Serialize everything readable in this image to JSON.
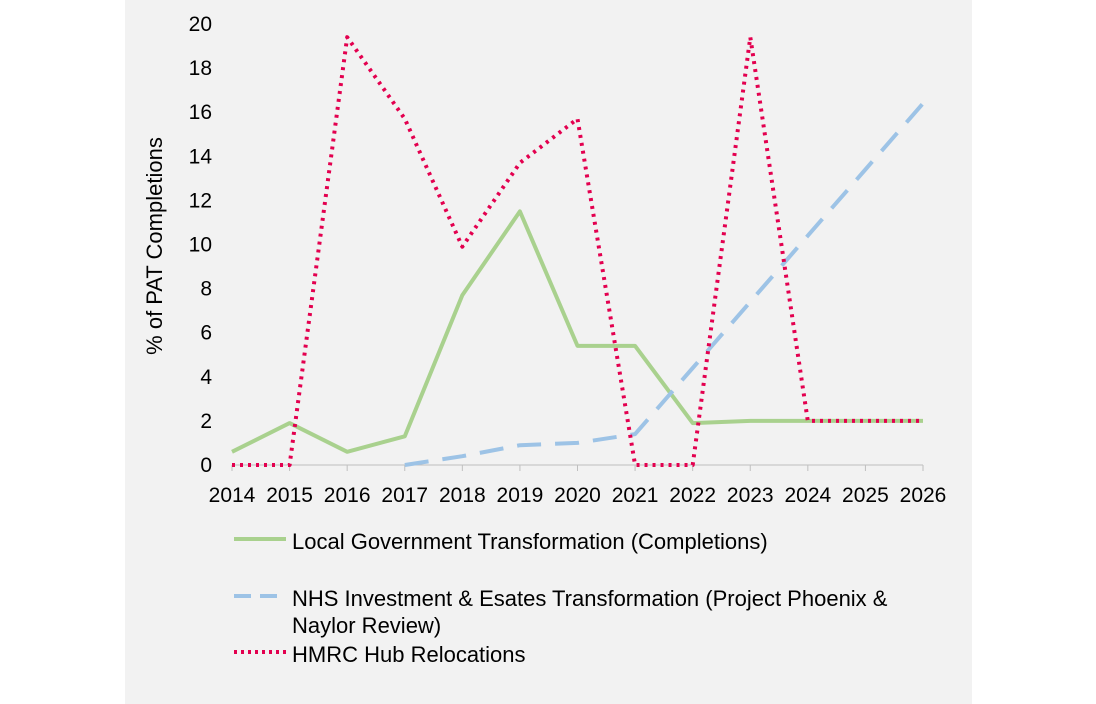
{
  "chart_data": {
    "type": "line",
    "title": "",
    "xlabel": "",
    "ylabel": "% of PAT Completions",
    "x": [
      "2014",
      "2015",
      "2016",
      "2017",
      "2018",
      "2019",
      "2020",
      "2021",
      "2022",
      "2023",
      "2024",
      "2025",
      "2026"
    ],
    "ylim": [
      0,
      20
    ],
    "yticks": [
      "0",
      "2",
      "4",
      "6",
      "8",
      "10",
      "12",
      "14",
      "16",
      "18",
      "20"
    ],
    "grid": false,
    "legend_position": "bottom",
    "series": [
      {
        "name": "Local Government Transformation (Completions)",
        "style": "solid",
        "color": "#a9d18e",
        "values": [
          0.6,
          1.9,
          0.6,
          1.3,
          7.7,
          11.5,
          5.4,
          5.4,
          1.9,
          2.0,
          2.0,
          2.0,
          2.0
        ]
      },
      {
        "name": "NHS Investment & Esates Transformation (Project Phoenix & Naylor Review)",
        "style": "dashed",
        "color": "#9dc3e6",
        "values": [
          null,
          null,
          null,
          0,
          0.4,
          0.9,
          1.0,
          1.4,
          4.4,
          7.4,
          10.4,
          13.4,
          16.4
        ]
      },
      {
        "name": "HMRC Hub Relocations",
        "style": "dotted",
        "color": "#e3004f",
        "values": [
          0,
          0,
          19.4,
          15.7,
          9.9,
          13.7,
          15.7,
          0,
          0,
          19.4,
          2.0,
          2.0,
          2.0
        ]
      }
    ]
  }
}
